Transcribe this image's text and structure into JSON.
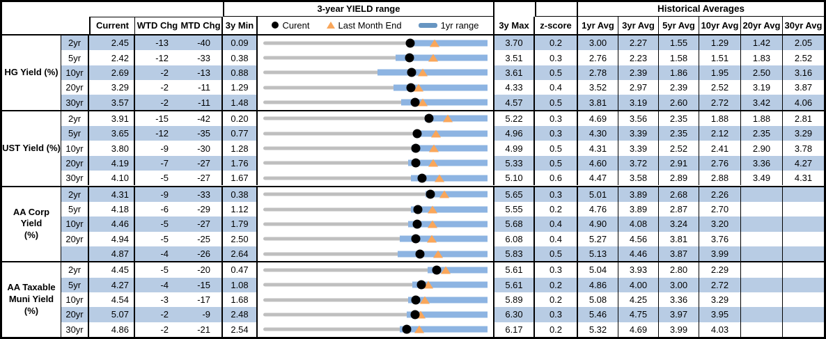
{
  "columns": {
    "current": "Current",
    "wtd": "WTD Chg",
    "mtd": "MTD Chg",
    "min": "3y Min",
    "max": "3y Max",
    "z": "z-score",
    "avgs": [
      "1yr Avg",
      "3yr Avg",
      "5yr Avg",
      "10yr Avg",
      "20yr Avg",
      "30yr Avg"
    ]
  },
  "legend": {
    "current": "Curent",
    "last_month": "Last Month End",
    "range": "1yr range"
  },
  "colors": {
    "row_stripe": "#B8CCE4",
    "bar_1yr": "#8DB4E2",
    "track_3yr": "#BFBFBF",
    "last_month_triangle": "#F9A65A",
    "current_dot": "#000000",
    "legend_bar": "#6795C1"
  },
  "chart_data": {
    "type": "table",
    "range_title": "3-year YIELD range",
    "hist_title": "Historical Averages",
    "note": "Each row shows a bullet range chart from 3y Min to 3y Max; blue bar = 1yr range, black dot = current, orange triangle = last month end.",
    "groups": [
      {
        "label": "HG Yield (%)",
        "rows": [
          {
            "tenor": "2yr",
            "current": "2.45",
            "wtd_chg": "-13",
            "mtd_chg": "-40",
            "min_3y": "0.09",
            "max_3y": "3.70",
            "z_score": "0.2",
            "avgs": [
              "3.00",
              "2.27",
              "1.55",
              "1.29",
              "1.42",
              "2.05"
            ],
            "num": {
              "min": 0.09,
              "max": 3.7,
              "current": 2.45,
              "last_month_end": 2.85,
              "low_1yr": 2.45,
              "high_1yr": 3.7
            }
          },
          {
            "tenor": "5yr",
            "current": "2.42",
            "wtd_chg": "-12",
            "mtd_chg": "-33",
            "min_3y": "0.38",
            "max_3y": "3.51",
            "z_score": "0.3",
            "avgs": [
              "2.76",
              "2.23",
              "1.58",
              "1.51",
              "1.83",
              "2.52"
            ],
            "num": {
              "min": 0.38,
              "max": 3.51,
              "current": 2.42,
              "last_month_end": 2.75,
              "low_1yr": 2.23,
              "high_1yr": 3.51
            }
          },
          {
            "tenor": "10yr",
            "current": "2.69",
            "wtd_chg": "-2",
            "mtd_chg": "-13",
            "min_3y": "0.88",
            "max_3y": "3.61",
            "z_score": "0.5",
            "avgs": [
              "2.78",
              "2.39",
              "1.86",
              "1.95",
              "2.50",
              "3.16"
            ],
            "num": {
              "min": 0.88,
              "max": 3.61,
              "current": 2.69,
              "last_month_end": 2.82,
              "low_1yr": 2.27,
              "high_1yr": 3.61
            }
          },
          {
            "tenor": "20yr",
            "current": "3.29",
            "wtd_chg": "-2",
            "mtd_chg": "-11",
            "min_3y": "1.29",
            "max_3y": "4.33",
            "z_score": "0.4",
            "avgs": [
              "3.52",
              "2.97",
              "2.39",
              "2.52",
              "3.19",
              "3.87"
            ],
            "num": {
              "min": 1.29,
              "max": 4.33,
              "current": 3.29,
              "last_month_end": 3.4,
              "low_1yr": 3.06,
              "high_1yr": 4.33
            }
          },
          {
            "tenor": "30yr",
            "current": "3.57",
            "wtd_chg": "-2",
            "mtd_chg": "-11",
            "min_3y": "1.48",
            "max_3y": "4.57",
            "z_score": "0.5",
            "avgs": [
              "3.81",
              "3.19",
              "2.60",
              "2.72",
              "3.42",
              "4.06"
            ],
            "num": {
              "min": 1.48,
              "max": 4.57,
              "current": 3.57,
              "last_month_end": 3.68,
              "low_1yr": 3.38,
              "high_1yr": 4.57
            }
          }
        ]
      },
      {
        "label": "UST Yield (%)",
        "rows": [
          {
            "tenor": "2yr",
            "current": "3.91",
            "wtd_chg": "-15",
            "mtd_chg": "-42",
            "min_3y": "0.20",
            "max_3y": "5.22",
            "z_score": "0.3",
            "avgs": [
              "4.69",
              "3.56",
              "2.35",
              "1.88",
              "1.88",
              "2.81"
            ],
            "num": {
              "min": 0.2,
              "max": 5.22,
              "current": 3.91,
              "last_month_end": 4.33,
              "low_1yr": 3.81,
              "high_1yr": 5.22
            }
          },
          {
            "tenor": "5yr",
            "current": "3.65",
            "wtd_chg": "-12",
            "mtd_chg": "-35",
            "min_3y": "0.77",
            "max_3y": "4.96",
            "z_score": "0.3",
            "avgs": [
              "4.30",
              "3.39",
              "2.35",
              "2.12",
              "2.35",
              "3.29"
            ],
            "num": {
              "min": 0.77,
              "max": 4.96,
              "current": 3.65,
              "last_month_end": 4.0,
              "low_1yr": 3.59,
              "high_1yr": 4.96
            }
          },
          {
            "tenor": "10yr",
            "current": "3.80",
            "wtd_chg": "-9",
            "mtd_chg": "-30",
            "min_3y": "1.28",
            "max_3y": "4.99",
            "z_score": "0.5",
            "avgs": [
              "4.31",
              "3.39",
              "2.52",
              "2.41",
              "2.90",
              "3.78"
            ],
            "num": {
              "min": 1.28,
              "max": 4.99,
              "current": 3.8,
              "last_month_end": 4.1,
              "low_1yr": 3.73,
              "high_1yr": 4.99
            }
          },
          {
            "tenor": "20yr",
            "current": "4.19",
            "wtd_chg": "-7",
            "mtd_chg": "-27",
            "min_3y": "1.76",
            "max_3y": "5.33",
            "z_score": "0.5",
            "avgs": [
              "4.60",
              "3.72",
              "2.91",
              "2.76",
              "3.36",
              "4.27"
            ],
            "num": {
              "min": 1.76,
              "max": 5.33,
              "current": 4.19,
              "last_month_end": 4.46,
              "low_1yr": 4.07,
              "high_1yr": 5.33
            }
          },
          {
            "tenor": "30yr",
            "current": "4.10",
            "wtd_chg": "-5",
            "mtd_chg": "-27",
            "min_3y": "1.67",
            "max_3y": "5.10",
            "z_score": "0.6",
            "avgs": [
              "4.47",
              "3.58",
              "2.89",
              "2.88",
              "3.49",
              "4.31"
            ],
            "num": {
              "min": 1.67,
              "max": 5.1,
              "current": 4.1,
              "last_month_end": 4.37,
              "low_1yr": 3.93,
              "high_1yr": 5.1
            }
          }
        ]
      },
      {
        "label": "AA Corp Yield\n(%)",
        "rows": [
          {
            "tenor": "2yr",
            "current": "4.31",
            "wtd_chg": "-9",
            "mtd_chg": "-33",
            "min_3y": "0.38",
            "max_3y": "5.65",
            "z_score": "0.3",
            "avgs": [
              "5.01",
              "3.89",
              "2.68",
              "2.26",
              "",
              ""
            ],
            "num": {
              "min": 0.38,
              "max": 5.65,
              "current": 4.31,
              "last_month_end": 4.64,
              "low_1yr": 4.19,
              "high_1yr": 5.65
            }
          },
          {
            "tenor": "5yr",
            "current": "4.18",
            "wtd_chg": "-6",
            "mtd_chg": "-29",
            "min_3y": "1.12",
            "max_3y": "5.55",
            "z_score": "0.2",
            "avgs": [
              "4.76",
              "3.89",
              "2.87",
              "2.70",
              "",
              ""
            ],
            "num": {
              "min": 1.12,
              "max": 5.55,
              "current": 4.18,
              "last_month_end": 4.47,
              "low_1yr": 4.04,
              "high_1yr": 5.55
            }
          },
          {
            "tenor": "10yr",
            "current": "4.46",
            "wtd_chg": "-5",
            "mtd_chg": "-27",
            "min_3y": "1.79",
            "max_3y": "5.68",
            "z_score": "0.4",
            "avgs": [
              "4.90",
              "4.08",
              "3.24",
              "3.20",
              "",
              ""
            ],
            "num": {
              "min": 1.79,
              "max": 5.68,
              "current": 4.46,
              "last_month_end": 4.73,
              "low_1yr": 4.3,
              "high_1yr": 5.68
            }
          },
          {
            "tenor": "20yr",
            "current": "4.94",
            "wtd_chg": "-5",
            "mtd_chg": "-25",
            "min_3y": "2.50",
            "max_3y": "6.08",
            "z_score": "0.4",
            "avgs": [
              "5.27",
              "4.56",
              "3.81",
              "3.76",
              "",
              ""
            ],
            "num": {
              "min": 2.5,
              "max": 6.08,
              "current": 4.94,
              "last_month_end": 5.19,
              "low_1yr": 4.68,
              "high_1yr": 6.08
            }
          },
          {
            "tenor": "",
            "current": "4.87",
            "wtd_chg": "-4",
            "mtd_chg": "-26",
            "min_3y": "2.64",
            "max_3y": "5.83",
            "z_score": "0.5",
            "avgs": [
              "5.13",
              "4.46",
              "3.87",
              "3.99",
              "",
              ""
            ],
            "num": {
              "min": 2.64,
              "max": 5.83,
              "current": 4.87,
              "last_month_end": 5.13,
              "low_1yr": 4.55,
              "high_1yr": 5.83
            }
          }
        ]
      },
      {
        "label": "AA Taxable\nMuni Yield\n(%)",
        "rows": [
          {
            "tenor": "2yr",
            "current": "4.45",
            "wtd_chg": "-5",
            "mtd_chg": "-20",
            "min_3y": "0.47",
            "max_3y": "5.61",
            "z_score": "0.3",
            "avgs": [
              "5.04",
              "3.93",
              "2.80",
              "2.29",
              "",
              ""
            ],
            "num": {
              "min": 0.47,
              "max": 5.61,
              "current": 4.45,
              "last_month_end": 4.65,
              "low_1yr": 4.24,
              "high_1yr": 5.61
            }
          },
          {
            "tenor": "5yr",
            "current": "4.27",
            "wtd_chg": "-4",
            "mtd_chg": "-15",
            "min_3y": "1.08",
            "max_3y": "5.61",
            "z_score": "0.2",
            "avgs": [
              "4.86",
              "4.00",
              "3.00",
              "2.72",
              "",
              ""
            ],
            "num": {
              "min": 1.08,
              "max": 5.61,
              "current": 4.27,
              "last_month_end": 4.42,
              "low_1yr": 4.09,
              "high_1yr": 5.61
            }
          },
          {
            "tenor": "10yr",
            "current": "4.54",
            "wtd_chg": "-3",
            "mtd_chg": "-17",
            "min_3y": "1.68",
            "max_3y": "5.89",
            "z_score": "0.2",
            "avgs": [
              "5.08",
              "4.25",
              "3.36",
              "3.29",
              "",
              ""
            ],
            "num": {
              "min": 1.68,
              "max": 5.89,
              "current": 4.54,
              "last_month_end": 4.71,
              "low_1yr": 4.4,
              "high_1yr": 5.89
            }
          },
          {
            "tenor": "20yr",
            "current": "5.07",
            "wtd_chg": "-2",
            "mtd_chg": "-9",
            "min_3y": "2.48",
            "max_3y": "6.30",
            "z_score": "0.3",
            "avgs": [
              "5.46",
              "4.75",
              "3.97",
              "3.95",
              "",
              ""
            ],
            "num": {
              "min": 2.48,
              "max": 6.3,
              "current": 5.07,
              "last_month_end": 5.16,
              "low_1yr": 4.92,
              "high_1yr": 6.3
            }
          },
          {
            "tenor": "30yr",
            "current": "4.86",
            "wtd_chg": "-2",
            "mtd_chg": "-21",
            "min_3y": "2.54",
            "max_3y": "6.17",
            "z_score": "0.2",
            "avgs": [
              "5.32",
              "4.69",
              "3.99",
              "4.03",
              "",
              ""
            ],
            "num": {
              "min": 2.54,
              "max": 6.17,
              "current": 4.86,
              "last_month_end": 5.07,
              "low_1yr": 4.75,
              "high_1yr": 6.17
            }
          }
        ]
      }
    ]
  }
}
